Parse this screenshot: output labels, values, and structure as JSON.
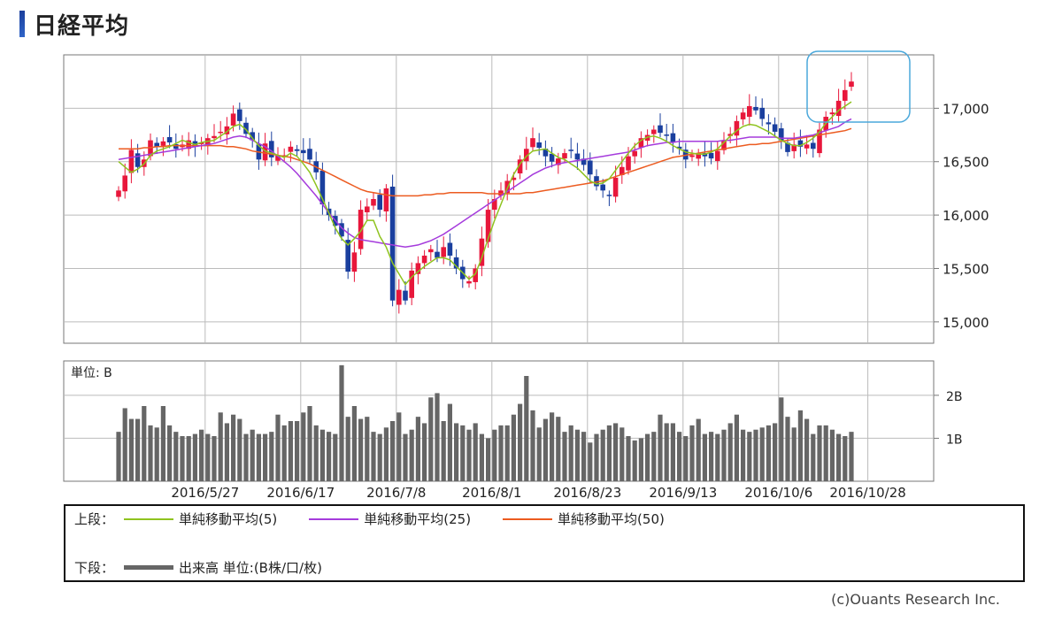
{
  "page": {
    "title": "日経平均",
    "credit": "(c)Ouants Research Inc."
  },
  "legend": {
    "upper_label": "上段：",
    "lower_label": "下段：",
    "ma5": "単純移動平均(5)",
    "ma25": "単純移動平均(25)",
    "ma50": "単純移動平均(50)",
    "volume": "出来高 単位:(B株/口/枚)"
  },
  "colors": {
    "up": "#e8173b",
    "down": "#1a3f9e",
    "ma5": "#8fc31f",
    "ma25": "#a53bdc",
    "ma50": "#ec5b20",
    "volume": "#666666",
    "highlight": "#4aa8db",
    "title_bar": "#1b3f9c"
  },
  "chart_data": {
    "type": "candlestick",
    "price": {
      "ylim": [
        14800,
        17500
      ],
      "yticks": [
        15000,
        15500,
        16000,
        16500,
        17000
      ],
      "ytick_labels": [
        "15,000",
        "15,500",
        "16,000",
        "16,500",
        "17,000"
      ]
    },
    "volume": {
      "unit_label": "単位: B",
      "ylim": [
        0,
        2.8
      ],
      "yticks": [
        1,
        2
      ],
      "ytick_labels": [
        "1B",
        "2B"
      ]
    },
    "x_labels": [
      "2016/5/27",
      "2016/6/17",
      "2016/7/8",
      "2016/8/1",
      "2016/8/23",
      "2016/9/13",
      "2016/10/6",
      "2016/10/28"
    ],
    "n_bars": 116,
    "x_label_positions": [
      14,
      29,
      44,
      59,
      74,
      89,
      104,
      118
    ],
    "close": [
      16230,
      16370,
      16610,
      16450,
      16520,
      16700,
      16640,
      16690,
      16680,
      16620,
      16660,
      16700,
      16640,
      16680,
      16720,
      16740,
      16780,
      16830,
      16950,
      16880,
      16760,
      16700,
      16520,
      16670,
      16540,
      16560,
      16560,
      16640,
      16600,
      16580,
      16520,
      16400,
      16100,
      16000,
      15900,
      15800,
      15470,
      15650,
      16050,
      16080,
      16150,
      16050,
      16250,
      15200,
      15300,
      15200,
      15480,
      15550,
      15620,
      15680,
      15600,
      15700,
      15620,
      15500,
      15400,
      15380,
      15500,
      15780,
      16050,
      16150,
      16230,
      16320,
      16350,
      16520,
      16620,
      16720,
      16630,
      16550,
      16500,
      16530,
      16580,
      16600,
      16520,
      16470,
      16380,
      16270,
      16230,
      16180,
      16350,
      16450,
      16550,
      16600,
      16720,
      16750,
      16800,
      16770,
      16750,
      16680,
      16620,
      16520,
      16560,
      16580,
      16550,
      16530,
      16600,
      16700,
      16760,
      16880,
      16960,
      17020,
      16980,
      16900,
      16850,
      16780,
      16700,
      16590,
      16660,
      16640,
      16660,
      16620,
      16800,
      16920,
      16960,
      17070,
      17170,
      17250
    ],
    "volume_b": [
      1.15,
      1.7,
      1.45,
      1.45,
      1.75,
      1.3,
      1.25,
      1.75,
      1.3,
      1.15,
      1.05,
      1.05,
      1.1,
      1.2,
      1.1,
      1.05,
      1.6,
      1.35,
      1.55,
      1.45,
      1.1,
      1.2,
      1.1,
      1.1,
      1.15,
      1.55,
      1.3,
      1.4,
      1.4,
      1.6,
      1.75,
      1.3,
      1.2,
      1.15,
      1.1,
      2.7,
      1.5,
      1.75,
      1.45,
      1.5,
      1.15,
      1.1,
      1.25,
      1.4,
      1.6,
      1.1,
      1.2,
      1.5,
      1.35,
      1.95,
      2.05,
      1.4,
      1.8,
      1.35,
      1.3,
      1.2,
      1.35,
      1.1,
      1.0,
      1.2,
      1.3,
      1.3,
      1.55,
      1.8,
      2.45,
      1.65,
      1.25,
      1.45,
      1.6,
      1.5,
      1.15,
      1.3,
      1.2,
      1.15,
      0.9,
      1.1,
      1.2,
      1.3,
      1.35,
      1.25,
      1.05,
      0.95,
      1.0,
      1.1,
      1.15,
      1.55,
      1.35,
      1.35,
      1.15,
      1.05,
      1.3,
      1.45,
      1.1,
      1.15,
      1.1,
      1.2,
      1.35,
      1.55,
      1.2,
      1.15,
      1.2,
      1.25,
      1.3,
      1.35,
      1.95,
      1.5,
      1.25,
      1.65,
      1.45,
      1.1,
      1.3,
      1.3,
      1.2,
      1.1,
      1.05,
      1.15
    ],
    "ma5": [
      16500,
      16450,
      16400,
      16430,
      16480,
      16560,
      16600,
      16620,
      16640,
      16670,
      16700,
      16680,
      16660,
      16680,
      16690,
      16700,
      16740,
      16780,
      16830,
      16850,
      16800,
      16720,
      16650,
      16600,
      16580,
      16560,
      16540,
      16580,
      16550,
      16480,
      16400,
      16280,
      16150,
      16020,
      15880,
      15780,
      15720,
      15780,
      15850,
      15950,
      15950,
      15800,
      15700,
      15550,
      15450,
      15350,
      15420,
      15470,
      15520,
      15560,
      15600,
      15600,
      15580,
      15520,
      15460,
      15400,
      15450,
      15600,
      15780,
      15950,
      16100,
      16250,
      16380,
      16480,
      16550,
      16600,
      16610,
      16620,
      16580,
      16540,
      16520,
      16480,
      16440,
      16380,
      16320,
      16290,
      16300,
      16340,
      16420,
      16500,
      16580,
      16650,
      16700,
      16730,
      16740,
      16720,
      16690,
      16650,
      16620,
      16590,
      16580,
      16570,
      16570,
      16590,
      16620,
      16680,
      16740,
      16790,
      16830,
      16850,
      16840,
      16810,
      16780,
      16740,
      16700,
      16670,
      16650,
      16650,
      16680,
      16720,
      16780,
      16860,
      16920,
      16980,
      17020,
      17060
    ],
    "ma25": [
      16520,
      16530,
      16540,
      16550,
      16560,
      16570,
      16580,
      16590,
      16600,
      16610,
      16620,
      16630,
      16640,
      16650,
      16660,
      16670,
      16690,
      16710,
      16730,
      16740,
      16730,
      16700,
      16670,
      16640,
      16600,
      16550,
      16500,
      16450,
      16390,
      16320,
      16250,
      16180,
      16100,
      16020,
      15950,
      15880,
      15830,
      15790,
      15770,
      15760,
      15750,
      15740,
      15730,
      15720,
      15710,
      15700,
      15710,
      15720,
      15740,
      15760,
      15790,
      15820,
      15860,
      15900,
      15940,
      15980,
      16020,
      16060,
      16100,
      16140,
      16180,
      16220,
      16260,
      16300,
      16340,
      16380,
      16410,
      16440,
      16460,
      16480,
      16490,
      16500,
      16510,
      16520,
      16530,
      16540,
      16550,
      16560,
      16570,
      16580,
      16590,
      16610,
      16630,
      16650,
      16660,
      16670,
      16680,
      16680,
      16690,
      16690,
      16690,
      16690,
      16690,
      16690,
      16690,
      16700,
      16700,
      16710,
      16720,
      16730,
      16730,
      16730,
      16730,
      16730,
      16720,
      16720,
      16720,
      16730,
      16740,
      16750,
      16770,
      16790,
      16810,
      16830,
      16870,
      16900
    ],
    "ma50": [
      16620,
      16620,
      16620,
      16620,
      16630,
      16630,
      16640,
      16640,
      16650,
      16650,
      16650,
      16650,
      16650,
      16650,
      16650,
      16650,
      16650,
      16640,
      16640,
      16630,
      16620,
      16600,
      16590,
      16580,
      16570,
      16560,
      16550,
      16540,
      16520,
      16500,
      16480,
      16450,
      16420,
      16390,
      16360,
      16330,
      16300,
      16270,
      16240,
      16220,
      16210,
      16200,
      16190,
      16180,
      16180,
      16180,
      16180,
      16180,
      16190,
      16190,
      16200,
      16200,
      16210,
      16210,
      16210,
      16210,
      16210,
      16210,
      16200,
      16200,
      16200,
      16200,
      16200,
      16200,
      16210,
      16210,
      16220,
      16230,
      16240,
      16250,
      16260,
      16270,
      16280,
      16290,
      16300,
      16310,
      16320,
      16340,
      16360,
      16380,
      16400,
      16420,
      16440,
      16460,
      16480,
      16500,
      16520,
      16540,
      16550,
      16560,
      16570,
      16580,
      16590,
      16600,
      16610,
      16620,
      16630,
      16640,
      16650,
      16660,
      16660,
      16670,
      16670,
      16680,
      16690,
      16700,
      16710,
      16720,
      16730,
      16740,
      16750,
      16760,
      16770,
      16780,
      16790,
      16810
    ]
  }
}
